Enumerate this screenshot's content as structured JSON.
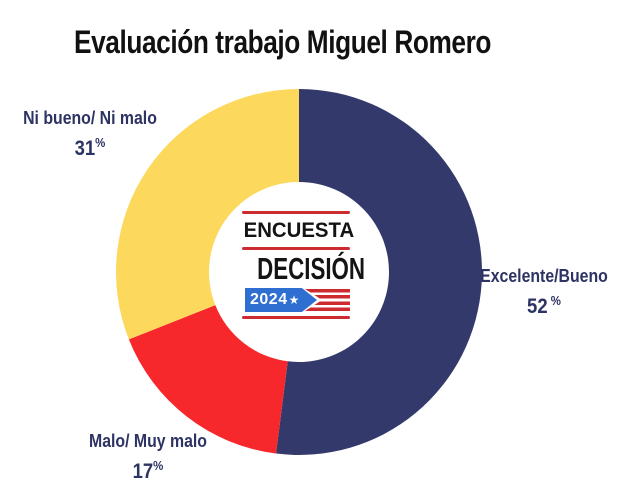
{
  "title": "Evaluación trabajo Miguel Romero",
  "colors": {
    "background": "#ffffff",
    "title_text": "#111111",
    "label_text": "#2d3363"
  },
  "chart_data": {
    "type": "pie",
    "subtype": "donut",
    "title": "Evaluación trabajo Miguel Romero",
    "start_angle_deg": 0,
    "direction": "clockwise",
    "legend_position": "outside-callouts",
    "segments": [
      {
        "label": "Excelente/Bueno",
        "value": 52,
        "display_number": "52",
        "display_percent": " %",
        "color": "#333a6b"
      },
      {
        "label": "Malo/ Muy malo",
        "value": 17,
        "display_number": "17",
        "display_percent": "%",
        "color": "#f7282c"
      },
      {
        "label": "Ni bueno/ Ni malo",
        "value": 31,
        "display_number": "31",
        "display_percent": "%",
        "color": "#fcd95c"
      }
    ],
    "center_logo": {
      "encuesta_text": "ENCUESTA",
      "decision_text": "DECISIÓN",
      "year_text": "2024",
      "star": "★",
      "line_color": "#ce2b30",
      "stripes_color": "#ce2b30",
      "year_box_color": "#2e6fd1",
      "year_text_color": "#ffffff",
      "text_color": "#141414"
    }
  }
}
